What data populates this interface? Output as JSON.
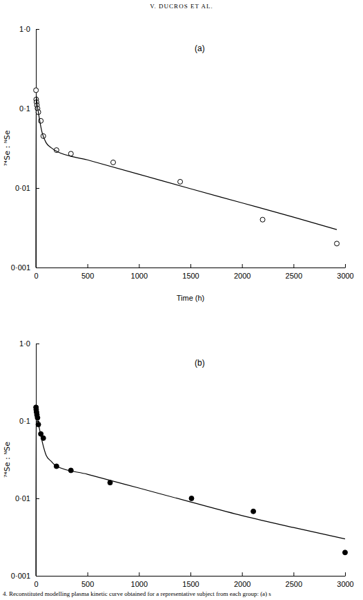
{
  "header": "V. DUCROS ET AL.",
  "caption": "4. Reconstituted modelling plasma kinetic curve obtained for a representative subject from each group: (a) s",
  "chart_data": [
    {
      "type": "scatter",
      "title": "(a)",
      "x_label": "Time (h)",
      "y_label": "⁷⁴Se : ᴺSe",
      "log": "y",
      "xlim": [
        0,
        3000
      ],
      "ylim": [
        0.001,
        1
      ],
      "xticks": [
        0,
        500,
        1000,
        1500,
        2000,
        2500,
        3000
      ],
      "yticks": [
        {
          "value": 0.001,
          "label": "0·001"
        },
        {
          "value": 0.01,
          "label": "0·01"
        },
        {
          "value": 0.1,
          "label": "0·1"
        },
        {
          "value": 1,
          "label": "1·0"
        }
      ],
      "series": [
        {
          "type": "scatter",
          "marker": "circle-open",
          "color": "#000000",
          "x": [
            1,
            3,
            6,
            10,
            16,
            24,
            48,
            72,
            200,
            340,
            750,
            1400,
            2200,
            2920
          ],
          "values": [
            0.17,
            0.13,
            0.12,
            0.11,
            0.1,
            0.09,
            0.07,
            0.045,
            0.03,
            0.027,
            0.021,
            0.012,
            0.004,
            0.002
          ]
        },
        {
          "type": "line",
          "line_style": "solid",
          "color": "#000000",
          "x": [
            0,
            2,
            10,
            30,
            60,
            100,
            150,
            200,
            500,
            1000,
            1500,
            2000,
            2500,
            2920
          ],
          "values": [
            0.001,
            0.15,
            0.12,
            0.08,
            0.05,
            0.037,
            0.032,
            0.029,
            0.0226,
            0.0149,
            0.0098,
            0.0065,
            0.0043,
            0.003
          ]
        }
      ]
    },
    {
      "type": "scatter",
      "title": "(b)",
      "x_label": "Time (h)",
      "y_label": "⁷⁴Se : ᴺSe",
      "log": "y",
      "xlim": [
        0,
        3000
      ],
      "ylim": [
        0.001,
        1
      ],
      "xticks": [
        0,
        500,
        1000,
        1500,
        2000,
        2500,
        3000
      ],
      "yticks": [
        {
          "value": 0.001,
          "label": "0·001"
        },
        {
          "value": 0.01,
          "label": "0·01"
        },
        {
          "value": 0.1,
          "label": "0·1"
        },
        {
          "value": 1,
          "label": "1·0"
        }
      ],
      "series": [
        {
          "type": "scatter",
          "marker": "circle",
          "color": "#000000",
          "x": [
            1,
            3,
            6,
            10,
            16,
            24,
            48,
            72,
            200,
            340,
            720,
            1510,
            2110,
            3000
          ],
          "values": [
            0.15,
            0.14,
            0.13,
            0.12,
            0.11,
            0.09,
            0.068,
            0.06,
            0.026,
            0.023,
            0.016,
            0.01,
            0.0068,
            0.002
          ]
        },
        {
          "type": "line",
          "line_style": "solid",
          "color": "#000000",
          "x": [
            0,
            2,
            10,
            30,
            60,
            100,
            150,
            200,
            500,
            1000,
            1500,
            2000,
            2500,
            3000
          ],
          "values": [
            0.001,
            0.14,
            0.12,
            0.085,
            0.055,
            0.036,
            0.03,
            0.026,
            0.0205,
            0.0136,
            0.009,
            0.006,
            0.0042,
            0.003
          ]
        }
      ]
    }
  ]
}
